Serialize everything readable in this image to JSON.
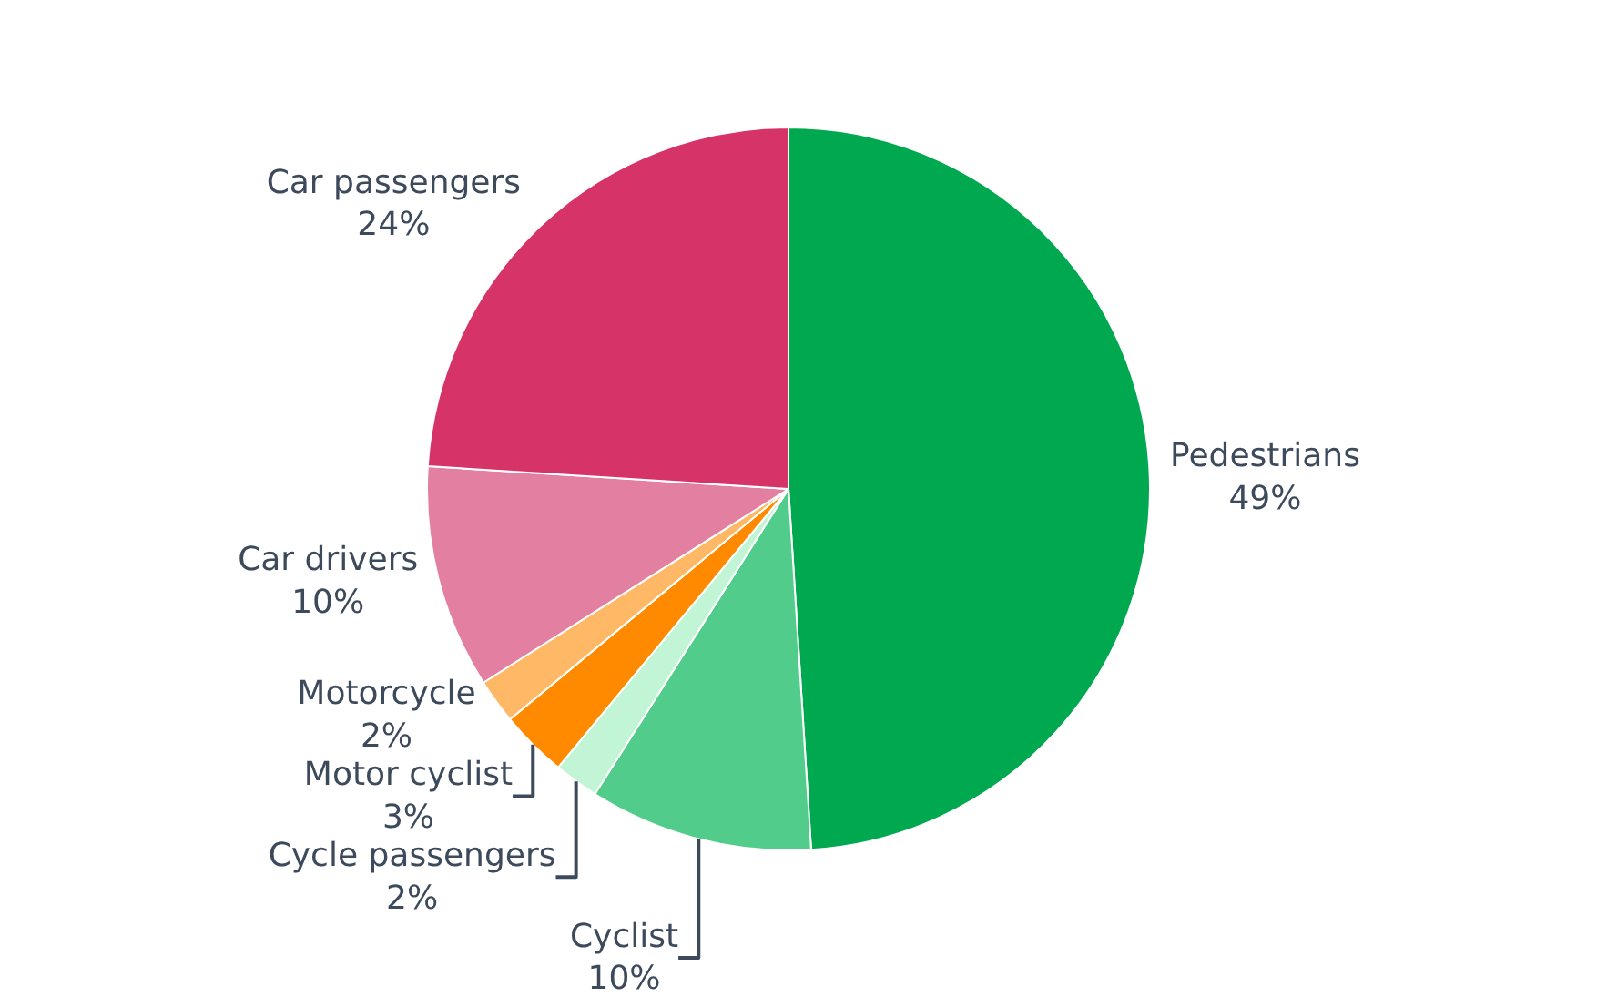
{
  "chart_data": {
    "type": "pie",
    "categories": [
      "Pedestrians",
      "Cyclist",
      "Cycle passengers",
      "Motor cyclist",
      "Motorcycle",
      "Car drivers",
      "Car passengers"
    ],
    "values": [
      49,
      10,
      2,
      3,
      2,
      10,
      24
    ],
    "value_labels": [
      "49%",
      "10%",
      "2%",
      "3%",
      "2%",
      "10%",
      "24%"
    ],
    "colors": [
      "#00a84f",
      "#52cc8a",
      "#c2f5d6",
      "#ff8a00",
      "#ffb866",
      "#e37fa0",
      "#d63368"
    ],
    "legend": false
  }
}
